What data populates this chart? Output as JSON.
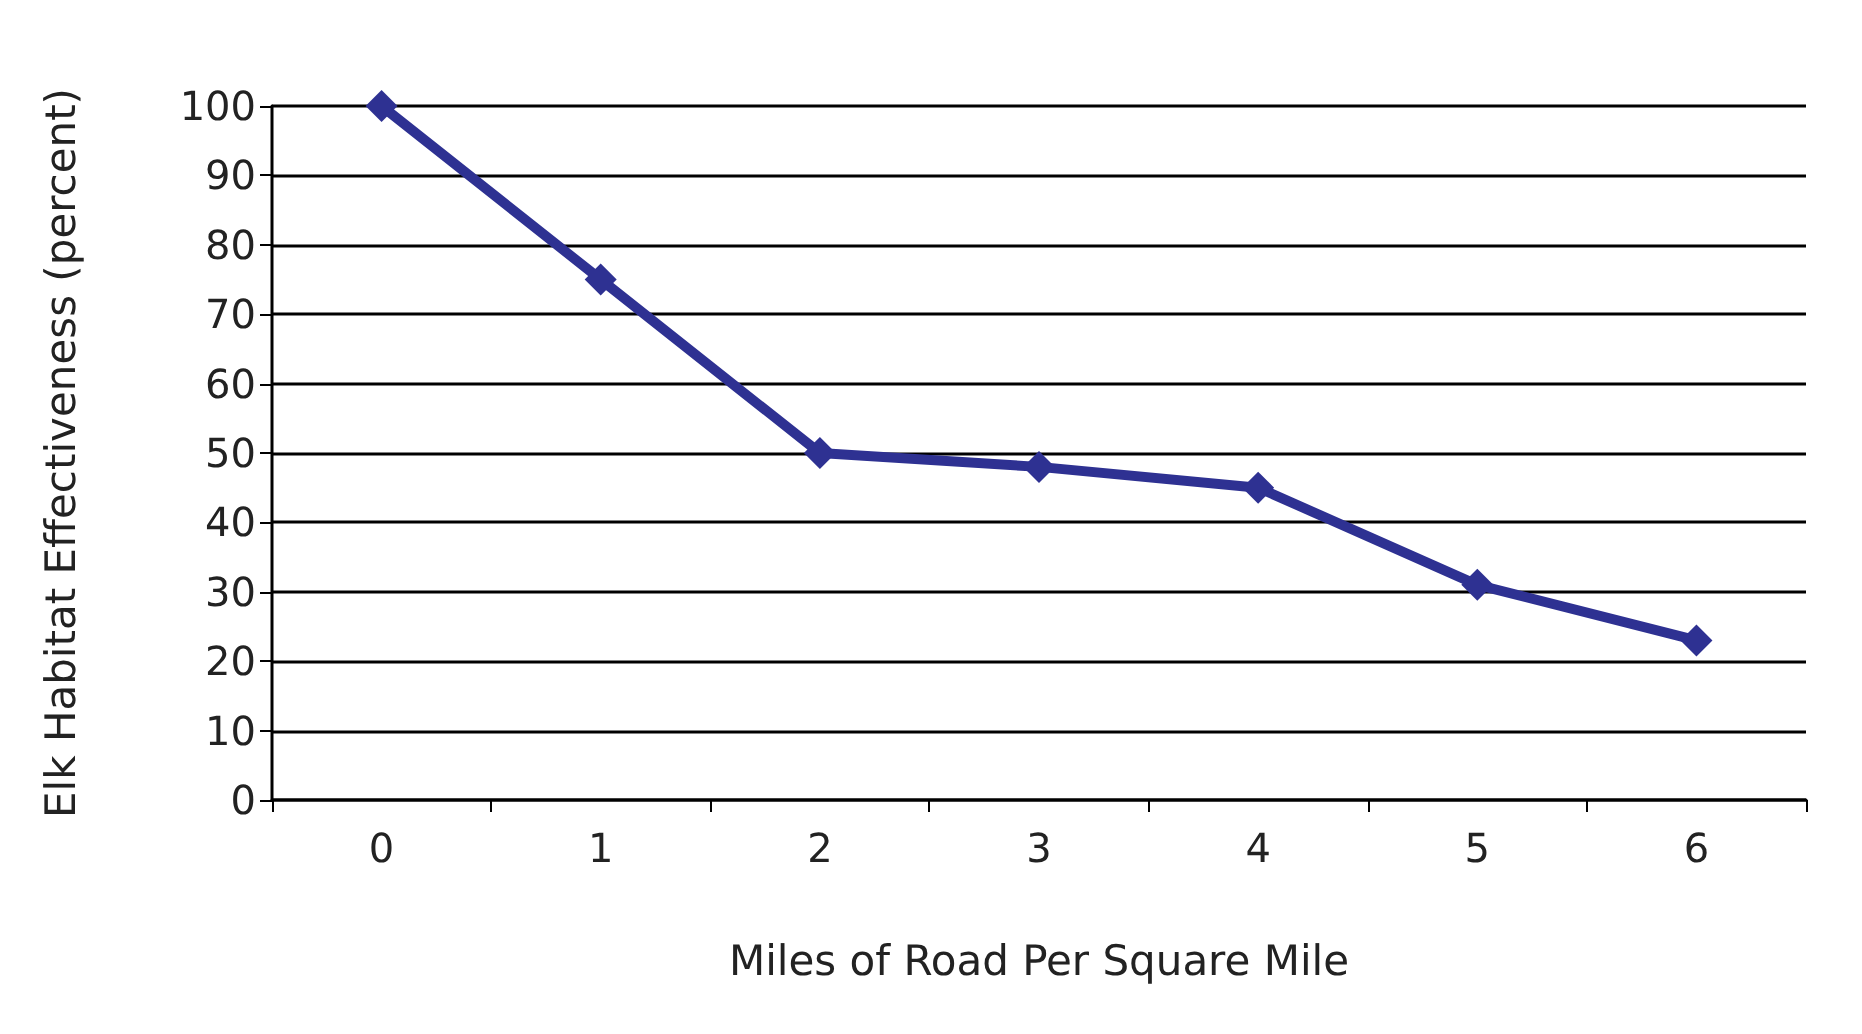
{
  "chart_data": {
    "type": "line",
    "xlabel": "Miles of Road Per Square Mile",
    "ylabel": "Elk Habitat Effectiveness (percent)",
    "categories": [
      "0",
      "1",
      "2",
      "3",
      "4",
      "5",
      "6"
    ],
    "series": [
      {
        "color": "#2e3192",
        "values": [
          100,
          75,
          50,
          48,
          45,
          31,
          23
        ]
      }
    ],
    "ylim": [
      0,
      100
    ],
    "yticks": [
      0,
      10,
      20,
      30,
      40,
      50,
      60,
      70,
      80,
      90,
      100
    ],
    "grid": "y",
    "marker": "diamond",
    "line_style": "solid"
  }
}
